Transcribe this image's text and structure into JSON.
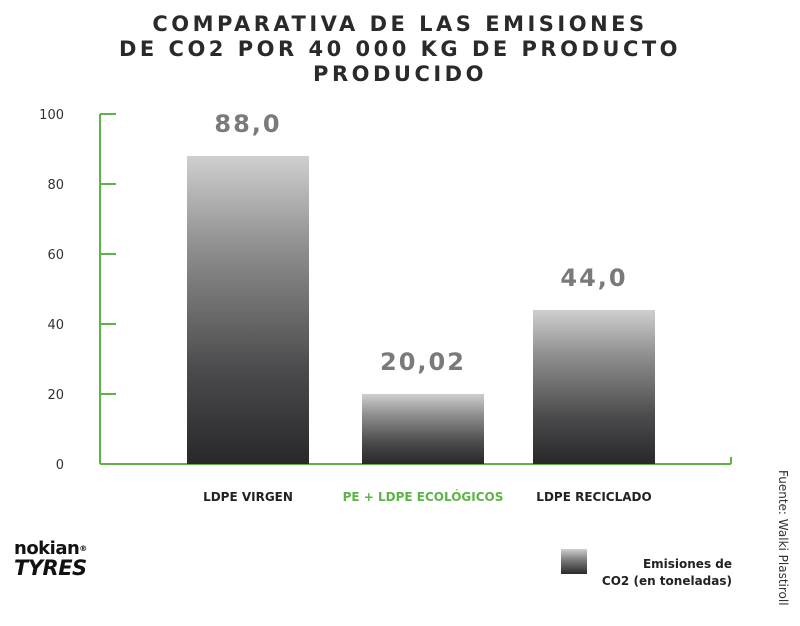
{
  "chart_data": {
    "type": "bar",
    "title_lines": [
      "COMPARATIVA DE LAS EMISIONES",
      "DE CO2  POR 40 000 KG DE PRODUCTO",
      "PRODUCIDO"
    ],
    "categories": [
      "LDPE VIRGEN",
      "PE + LDPE ECOLÓGICOS",
      "LDPE RECICLADO"
    ],
    "values": [
      88.0,
      20.02,
      44.0
    ],
    "value_labels": [
      "88,0",
      "20,02",
      "44,0"
    ],
    "highlight_category_index": 1,
    "yticks": [
      "0",
      "20",
      "40",
      "60",
      "80",
      "100"
    ],
    "ylim": [
      0,
      100
    ],
    "xlabel": "",
    "ylabel": "",
    "grid": false,
    "legend": {
      "label": "Emisiones de CO2 (en toneladas)",
      "placement": "bottom-right"
    },
    "series": [
      {
        "name": "Emisiones de CO2 (en toneladas)",
        "values": [
          88.0,
          20.02,
          44.0
        ]
      }
    ]
  },
  "legend_lines": [
    "Emisiones de",
    "CO2 (en toneladas)"
  ],
  "logo": {
    "line1": "nokian",
    "line2": "TYRES",
    "mark": "®"
  },
  "source": "Fuente: Walki Plastiroll",
  "colors": {
    "axis": "#5cb346",
    "highlight_text": "#5cb346",
    "value_label": "#7a7a7a",
    "text": "#222222",
    "bar_top": "#cfcfcf",
    "bar_bottom": "#28282b"
  }
}
